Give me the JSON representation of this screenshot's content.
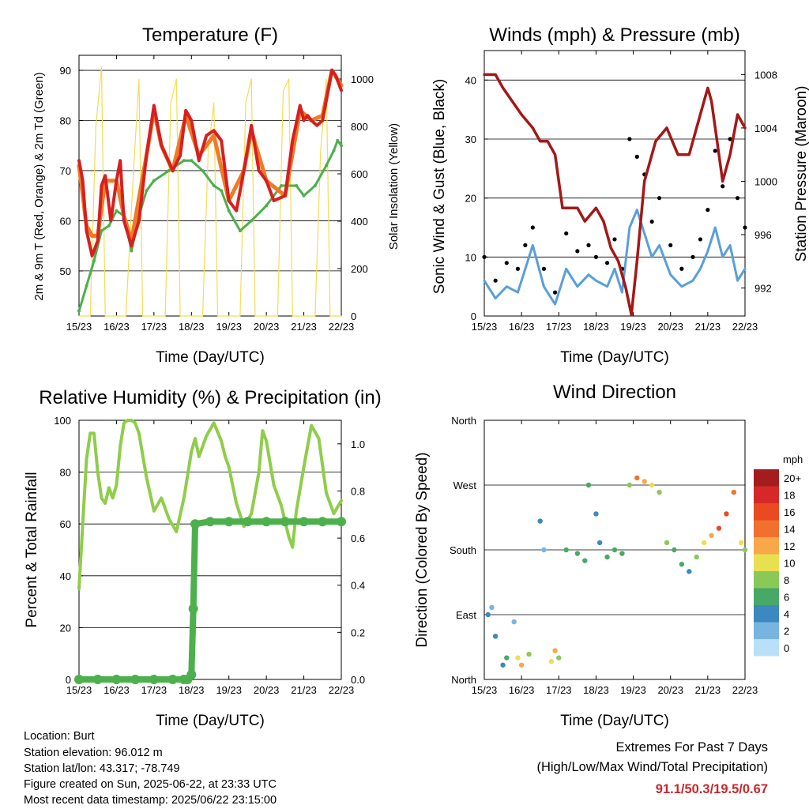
{
  "colors": {
    "temp2m": "#d62020",
    "temp9m": "#f07a25",
    "dewpoint": "#4cb04c",
    "solar": "#f5dc55",
    "wind": "#5a9fd8",
    "gust": "#000000",
    "pressure": "#a31818",
    "rh": "#8fcd4a",
    "precip": "#4cb04c",
    "extremes": "#c8282e"
  },
  "panels": {
    "temperature": {
      "title": "Temperature (F)",
      "xlabel": "Time (Day/UTC)",
      "ylabel": "2m & 9m T (Red, Orange) & 2m Td (Green)",
      "y2label": "Solar Insolation (Yellow)"
    },
    "winds": {
      "title": "Winds (mph) & Pressure (mb)",
      "xlabel": "Time (Day/UTC)",
      "ylabel": "Sonic Wind & Gust (Blue, Black)",
      "y2label": "Station Pressure (Maroon)"
    },
    "humidity": {
      "title": "Relative Humidity (%) & Precipitation (in)",
      "xlabel": "Time (Day/UTC)",
      "ylabel": "Percent & Total Rainfall"
    },
    "direction": {
      "title": "Wind Direction",
      "xlabel": "Time (Day/UTC)",
      "ylabel": "Direction (Colored By Speed)"
    }
  },
  "legend": {
    "unit": "mph",
    "labels": [
      "20+",
      "18",
      "16",
      "14",
      "12",
      "10",
      "8",
      "6",
      "4",
      "2",
      "0"
    ],
    "colors": [
      "#a51c1c",
      "#d62828",
      "#ea4a22",
      "#f2702e",
      "#f8a848",
      "#e8e050",
      "#8ac858",
      "#48a868",
      "#3c88c0",
      "#78b4e0",
      "#b8e0f8"
    ]
  },
  "info": {
    "location": "Location: Burt",
    "elevation": "Station elevation: 96.012 m",
    "latlon": "Station lat/lon: 43.317; -78.749",
    "created": "Figure created on Sun, 2025-06-22, at 23:33 UTC",
    "recent": "Most recent data timestamp: 2025/06/22 23:15:00"
  },
  "extremes": {
    "title": "Extremes For Past 7 Days",
    "subtitle": "(High/Low/Max Wind/Total Precipitation)",
    "values": "91.1/50.3/19.5/0.67"
  },
  "chart_data": [
    {
      "type": "line",
      "title": "Temperature (F)",
      "xlabel": "Time (Day/UTC)",
      "ylabel": "2m & 9m T (Red, Orange) & 2m Td (Green)",
      "y2label": "Solar Insolation (Yellow)",
      "x_ticks": [
        "15/23",
        "16/23",
        "17/23",
        "18/23",
        "19/23",
        "20/23",
        "21/23",
        "22/23"
      ],
      "ylim": [
        41,
        93
      ],
      "y_ticks": [
        50,
        60,
        70,
        80,
        90
      ],
      "y2lim": [
        0,
        1100
      ],
      "y2_ticks": [
        0,
        200,
        400,
        600,
        800,
        1000
      ],
      "xlim": [
        0,
        7
      ],
      "series": [
        {
          "name": "2m T",
          "axis": "left",
          "x": [
            0,
            0.1,
            0.2,
            0.35,
            0.5,
            0.6,
            0.7,
            0.85,
            1.0,
            1.1,
            1.2,
            1.4,
            1.6,
            1.8,
            2.0,
            2.2,
            2.5,
            2.7,
            2.85,
            3.0,
            3.2,
            3.4,
            3.6,
            3.8,
            4.0,
            4.2,
            4.4,
            4.6,
            4.8,
            5.0,
            5.2,
            5.5,
            5.7,
            5.9,
            6.0,
            6.1,
            6.2,
            6.35,
            6.5,
            6.6,
            6.7,
            6.75,
            6.85,
            7.0
          ],
          "y": [
            72,
            68,
            58,
            53,
            56,
            67,
            69,
            60,
            68,
            72,
            60,
            55,
            60,
            73,
            83,
            75,
            70,
            73,
            82,
            80,
            72,
            77,
            78,
            76,
            64,
            62,
            70,
            79,
            70,
            68,
            64,
            65,
            76,
            83,
            80,
            81,
            80,
            79,
            80,
            84,
            88,
            90,
            89,
            86
          ]
        },
        {
          "name": "9m T",
          "axis": "left",
          "x": [
            0,
            0.2,
            0.35,
            0.5,
            0.7,
            1.0,
            1.2,
            1.4,
            1.8,
            2.0,
            2.2,
            2.5,
            2.85,
            3.2,
            3.6,
            4.0,
            4.4,
            4.6,
            5.0,
            5.5,
            5.9,
            6.2,
            6.5,
            6.75,
            7.0
          ],
          "y": [
            71,
            59,
            57,
            57,
            68,
            68,
            61,
            56,
            73,
            82,
            75,
            70,
            81,
            73,
            77,
            64,
            70,
            78,
            68,
            65,
            82,
            80,
            81,
            90,
            87
          ]
        },
        {
          "name": "2m Td",
          "axis": "left",
          "x": [
            0,
            0.2,
            0.4,
            0.6,
            0.8,
            1.0,
            1.2,
            1.4,
            1.6,
            1.8,
            2.0,
            2.4,
            2.8,
            3.0,
            3.3,
            3.6,
            3.8,
            4.0,
            4.3,
            4.6,
            5.0,
            5.4,
            5.8,
            6.0,
            6.3,
            6.6,
            6.8,
            6.9,
            7.0
          ],
          "y": [
            42,
            47,
            52,
            58,
            59,
            62,
            61,
            54,
            61,
            66,
            68,
            70,
            72,
            72,
            70,
            67,
            66,
            62,
            58,
            60,
            63,
            67,
            67,
            65,
            67,
            71,
            74,
            76,
            75
          ]
        },
        {
          "name": "Solar",
          "axis": "right",
          "x": [
            0.0,
            0.3,
            0.45,
            0.6,
            0.7,
            1.0,
            1.25,
            1.45,
            1.6,
            1.7,
            2.0,
            2.3,
            2.45,
            2.6,
            2.7,
            3.0,
            3.3,
            3.45,
            3.6,
            3.7,
            4.0,
            4.3,
            4.45,
            4.6,
            4.7,
            5.0,
            5.3,
            5.45,
            5.6,
            5.7,
            6.0,
            6.3,
            6.45,
            6.6,
            6.7,
            7.0
          ],
          "y": [
            0,
            0,
            800,
            1050,
            0,
            0,
            0,
            600,
            1000,
            0,
            0,
            0,
            900,
            1000,
            0,
            0,
            0,
            700,
            900,
            0,
            0,
            0,
            900,
            1000,
            0,
            0,
            0,
            950,
            1000,
            0,
            0,
            0,
            700,
            1000,
            0,
            0
          ]
        }
      ]
    },
    {
      "type": "line",
      "title": "Winds (mph) & Pressure (mb)",
      "xlabel": "Time (Day/UTC)",
      "ylabel": "Sonic Wind & Gust (Blue, Black)",
      "y2label": "Station Pressure (Maroon)",
      "x_ticks": [
        "15/23",
        "16/23",
        "17/23",
        "18/23",
        "19/23",
        "20/23",
        "21/23",
        "22/23"
      ],
      "ylim": [
        0,
        45
      ],
      "y_ticks": [
        0,
        10,
        20,
        30,
        40
      ],
      "y2lim": [
        989.9,
        1009.8
      ],
      "y2_ticks": [
        992,
        996,
        1000,
        1004,
        1008
      ],
      "xlim": [
        0,
        7
      ],
      "series": [
        {
          "name": "Sonic Wind",
          "axis": "left",
          "x": [
            0,
            0.3,
            0.6,
            0.9,
            1.1,
            1.3,
            1.6,
            1.9,
            2.2,
            2.5,
            2.8,
            3.0,
            3.3,
            3.5,
            3.7,
            3.9,
            4.1,
            4.3,
            4.5,
            4.7,
            5.0,
            5.3,
            5.6,
            5.8,
            6.0,
            6.2,
            6.4,
            6.6,
            6.8,
            7.0
          ],
          "y": [
            6,
            3,
            5,
            4,
            8,
            12,
            5,
            2,
            8,
            5,
            7,
            6,
            5,
            8,
            4,
            15,
            18,
            14,
            10,
            12,
            7,
            5,
            6,
            8,
            11,
            15,
            10,
            12,
            6,
            8
          ]
        },
        {
          "name": "Gust",
          "axis": "left",
          "x": [
            0,
            0.3,
            0.6,
            0.9,
            1.1,
            1.3,
            1.6,
            1.9,
            2.2,
            2.5,
            2.8,
            3.0,
            3.3,
            3.5,
            3.7,
            3.9,
            4.1,
            4.3,
            4.5,
            4.7,
            5.0,
            5.3,
            5.6,
            5.8,
            6.0,
            6.2,
            6.4,
            6.6,
            6.8,
            7.0
          ],
          "y": [
            10,
            6,
            9,
            8,
            12,
            15,
            8,
            4,
            14,
            11,
            12,
            10,
            9,
            13,
            8,
            30,
            27,
            24,
            16,
            20,
            12,
            8,
            10,
            13,
            18,
            28,
            22,
            30,
            20,
            15
          ]
        },
        {
          "name": "Pressure",
          "axis": "right",
          "x": [
            0,
            0.3,
            0.5,
            1.0,
            1.3,
            1.5,
            1.7,
            1.9,
            2.0,
            2.1,
            2.3,
            2.5,
            2.7,
            3.0,
            3.2,
            3.4,
            3.6,
            3.8,
            3.95,
            4.1,
            4.3,
            4.6,
            4.9,
            5.2,
            5.5,
            5.7,
            5.9,
            6.0,
            6.1,
            6.2,
            6.4,
            6.6,
            6.8,
            7.0
          ],
          "y": [
            1008,
            1008,
            1007,
            1005,
            1004,
            1003,
            1003,
            1002,
            1000,
            998,
            998,
            998,
            997,
            998,
            997,
            995,
            994,
            992,
            990,
            994,
            1000,
            1003,
            1004,
            1002,
            1002,
            1004,
            1006,
            1007,
            1006,
            1004,
            1000,
            1002,
            1005,
            1004
          ]
        }
      ]
    },
    {
      "type": "line",
      "title": "Relative Humidity (%) & Precipitation (in)",
      "xlabel": "Time (Day/UTC)",
      "ylabel": "Percent & Total Rainfall",
      "x_ticks": [
        "15/23",
        "16/23",
        "17/23",
        "18/23",
        "19/23",
        "20/23",
        "21/23",
        "22/23"
      ],
      "ylim": [
        0,
        100
      ],
      "y_ticks": [
        0,
        20,
        40,
        60,
        80,
        100
      ],
      "y2lim": [
        0,
        1.1
      ],
      "y2_ticks": [
        0.0,
        0.2,
        0.4,
        0.6,
        0.8,
        1.0
      ],
      "xlim": [
        0,
        7
      ],
      "series": [
        {
          "name": "RH",
          "axis": "left",
          "x": [
            0,
            0.1,
            0.2,
            0.3,
            0.4,
            0.5,
            0.6,
            0.7,
            0.8,
            0.9,
            1.0,
            1.1,
            1.2,
            1.3,
            1.4,
            1.5,
            1.6,
            1.8,
            2.0,
            2.2,
            2.4,
            2.6,
            2.8,
            3.0,
            3.1,
            3.2,
            3.4,
            3.6,
            3.8,
            3.9,
            4.0,
            4.2,
            4.4,
            4.6,
            4.8,
            4.9,
            5.0,
            5.2,
            5.4,
            5.6,
            5.7,
            5.8,
            6.0,
            6.2,
            6.4,
            6.6,
            6.8,
            7.0
          ],
          "y": [
            35,
            60,
            85,
            95,
            95,
            80,
            70,
            68,
            74,
            70,
            75,
            90,
            99,
            100,
            100,
            99,
            95,
            78,
            65,
            70,
            62,
            57,
            70,
            88,
            93,
            86,
            94,
            99,
            92,
            86,
            82,
            68,
            59,
            64,
            80,
            96,
            92,
            75,
            67,
            55,
            51,
            65,
            82,
            98,
            93,
            72,
            64,
            69
          ]
        },
        {
          "name": "Precipitation",
          "axis": "right",
          "x": [
            0,
            0.5,
            1.0,
            1.5,
            2.0,
            2.5,
            2.8,
            2.9,
            3.0,
            3.05,
            3.1,
            3.5,
            4.0,
            4.5,
            5.0,
            5.5,
            6.0,
            6.5,
            7.0
          ],
          "y": [
            0.0,
            0.0,
            0.0,
            0.0,
            0.0,
            0.0,
            0.0,
            0.0,
            0.02,
            0.3,
            0.66,
            0.67,
            0.67,
            0.67,
            0.67,
            0.67,
            0.67,
            0.67,
            0.67
          ]
        }
      ]
    },
    {
      "type": "scatter",
      "title": "Wind Direction",
      "xlabel": "Time (Day/UTC)",
      "ylabel": "Direction (Colored By Speed)",
      "x_ticks": [
        "15/23",
        "16/23",
        "17/23",
        "18/23",
        "19/23",
        "20/23",
        "21/23",
        "22/23"
      ],
      "y_ticks": [
        "North",
        "East",
        "South",
        "West",
        "North"
      ],
      "ylim": [
        0,
        360
      ],
      "xlim": [
        0,
        7
      ],
      "legend": "right",
      "series": [
        {
          "name": "Direction",
          "x": [
            0.1,
            0.2,
            0.3,
            0.5,
            0.6,
            0.8,
            0.9,
            1.0,
            1.2,
            1.5,
            1.6,
            1.8,
            1.9,
            2.0,
            2.2,
            2.5,
            2.7,
            2.8,
            3.0,
            3.1,
            3.3,
            3.5,
            3.7,
            3.9,
            4.1,
            4.3,
            4.5,
            4.7,
            4.9,
            5.1,
            5.3,
            5.5,
            5.7,
            5.9,
            6.1,
            6.3,
            6.5,
            6.7,
            6.9,
            7.0
          ],
          "y": [
            90,
            100,
            60,
            20,
            30,
            80,
            30,
            20,
            35,
            220,
            180,
            25,
            40,
            30,
            180,
            175,
            165,
            270,
            230,
            190,
            170,
            180,
            175,
            270,
            280,
            275,
            270,
            260,
            190,
            180,
            160,
            150,
            170,
            190,
            200,
            210,
            230,
            260,
            190,
            180
          ],
          "speed": [
            3,
            2,
            3,
            4,
            6,
            2,
            10,
            12,
            8,
            3,
            2,
            10,
            12,
            8,
            6,
            6,
            6,
            5,
            4,
            3,
            6,
            6,
            5,
            7,
            14,
            12,
            10,
            8,
            7,
            5,
            5,
            4,
            8,
            10,
            12,
            15,
            16,
            14,
            10,
            8
          ]
        }
      ]
    }
  ]
}
